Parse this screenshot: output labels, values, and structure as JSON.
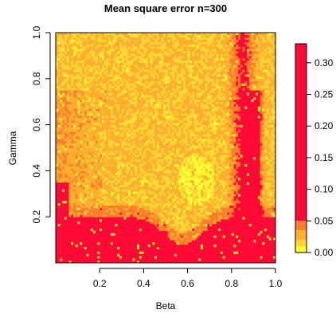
{
  "chart_data": {
    "type": "heatmap",
    "title": "Mean square error n=300",
    "xlabel": "Beta",
    "ylabel": "Gamma",
    "xlim": [
      0.0,
      1.0
    ],
    "ylim": [
      0.0,
      1.0
    ],
    "x_ticks": [
      {
        "value": 0.2,
        "label": "0.2"
      },
      {
        "value": 0.4,
        "label": "0.4"
      },
      {
        "value": 0.6,
        "label": "0.6"
      },
      {
        "value": 0.8,
        "label": "0.8"
      },
      {
        "value": 1.0,
        "label": "1.0"
      }
    ],
    "y_ticks": [
      {
        "value": 0.2,
        "label": "0.2"
      },
      {
        "value": 0.4,
        "label": "0.4"
      },
      {
        "value": 0.6,
        "label": "0.6"
      },
      {
        "value": 0.8,
        "label": "0.8"
      },
      {
        "value": 1.0,
        "label": "1.0"
      }
    ],
    "grid": false,
    "legend": {
      "position": "right",
      "type": "colorbar",
      "ticks": [
        {
          "value": 0.0,
          "label": "0.00"
        },
        {
          "value": 0.05,
          "label": "0.05"
        },
        {
          "value": 0.1,
          "label": "0.10"
        },
        {
          "value": 0.15,
          "label": "0.15"
        },
        {
          "value": 0.2,
          "label": "0.20"
        },
        {
          "value": 0.25,
          "label": "0.25"
        },
        {
          "value": 0.3,
          "label": "0.30"
        }
      ],
      "range": [
        0.0,
        0.33
      ]
    },
    "color_scale": {
      "levels": [
        {
          "min": 0.0,
          "max": 0.01,
          "color": "#ffff33"
        },
        {
          "min": 0.01,
          "max": 0.02,
          "color": "#ffd633"
        },
        {
          "min": 0.02,
          "max": 0.035,
          "color": "#fdae2f"
        },
        {
          "min": 0.035,
          "max": 0.05,
          "color": "#fb7f2a"
        },
        {
          "min": 0.05,
          "max": 0.33,
          "color": "#ff0a37"
        }
      ]
    },
    "grid_resolution": [
      100,
      100
    ],
    "regions": {
      "low_error_blob_center": {
        "beta": 0.64,
        "gamma": 0.36
      },
      "high_error_band_low_gamma": {
        "gamma_max": 0.2
      },
      "high_error_band_high_beta": {
        "beta_min": 0.85
      }
    }
  }
}
